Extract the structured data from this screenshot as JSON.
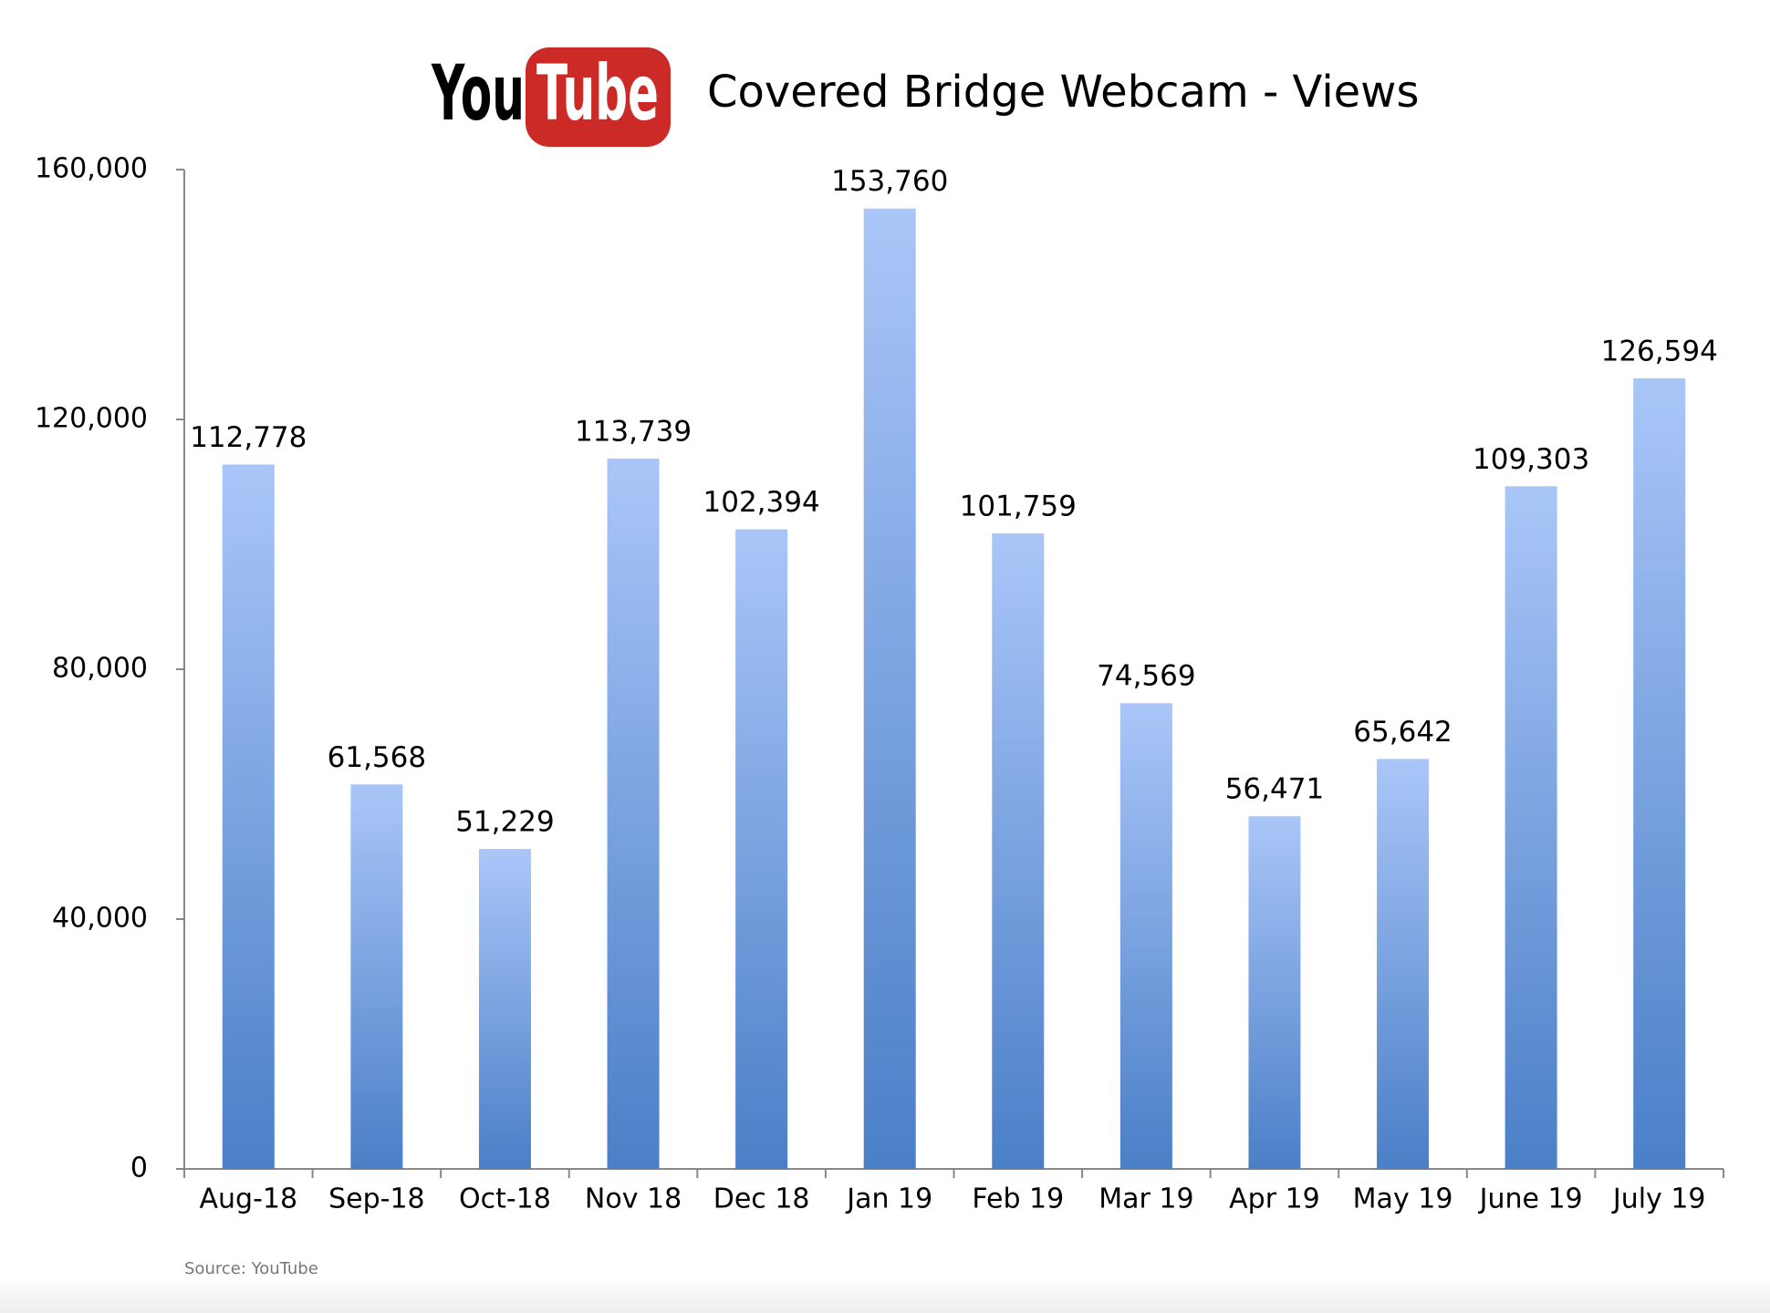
{
  "logo": {
    "you": "You",
    "tube": "Tube"
  },
  "chart_data": {
    "type": "bar",
    "title": "Covered Bridge Webcam - Views",
    "source": "Source: YouTube",
    "categories": [
      "Aug-18",
      "Sep-18",
      "Oct-18",
      "Nov 18",
      "Dec 18",
      "Jan 19",
      "Feb 19",
      "Mar 19",
      "Apr 19",
      "May 19",
      "June 19",
      "July 19"
    ],
    "values": [
      112778,
      61568,
      51229,
      113739,
      102394,
      153760,
      101759,
      74569,
      56471,
      65642,
      109303,
      126594
    ],
    "value_labels": [
      "112,778",
      "61,568",
      "51,229",
      "113,739",
      "102,394",
      "153,760",
      "101,759",
      "74,569",
      "56,471",
      "65,642",
      "109,303",
      "126,594"
    ],
    "color": "#4a7fc7",
    "color_top": "#aac6f8",
    "ylim": [
      0,
      160000
    ],
    "yticks": [
      0,
      {
        "value": 40000,
        "label": "40,000"
      },
      {
        "value": 80000,
        "label": "80,000"
      },
      {
        "value": 120000,
        "label": "120,000"
      },
      {
        "value": 160000,
        "label": "160,000"
      }
    ],
    "grid": false
  }
}
